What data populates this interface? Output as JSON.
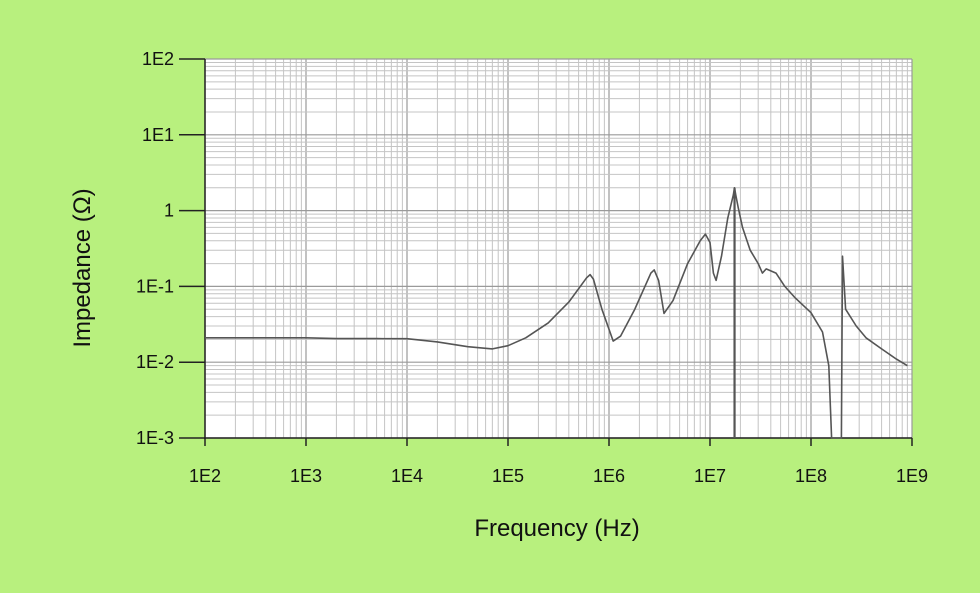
{
  "chart_data": {
    "type": "line",
    "xlabel": "Frequency (Hz)",
    "ylabel": "Impedance (Ω)",
    "x_scale": "log",
    "y_scale": "log",
    "xlim": [
      100,
      1000000000
    ],
    "ylim": [
      0.001,
      100
    ],
    "grid": true,
    "x_ticks": [
      {
        "value": 100,
        "label": "1E2"
      },
      {
        "value": 1000,
        "label": "1E3"
      },
      {
        "value": 10000,
        "label": "1E4"
      },
      {
        "value": 100000,
        "label": "1E5"
      },
      {
        "value": 1000000,
        "label": "1E6"
      },
      {
        "value": 10000000,
        "label": "1E7"
      },
      {
        "value": 100000000,
        "label": "1E8"
      },
      {
        "value": 1000000000,
        "label": "1E9"
      }
    ],
    "y_ticks": [
      {
        "value": 100,
        "label": "1E2"
      },
      {
        "value": 10,
        "label": "1E1"
      },
      {
        "value": 1,
        "label": "1"
      },
      {
        "value": 0.1,
        "label": "1E-1"
      },
      {
        "value": 0.01,
        "label": "1E-2"
      },
      {
        "value": 0.001,
        "label": "1E-3"
      }
    ],
    "series": [
      {
        "color": "#555555",
        "points": [
          [
            100,
            0.021
          ],
          [
            1000,
            0.021
          ],
          [
            2000,
            0.0205
          ],
          [
            5000,
            0.0205
          ],
          [
            10000,
            0.0204
          ],
          [
            20000,
            0.0185
          ],
          [
            40000,
            0.016
          ],
          [
            70000,
            0.015
          ],
          [
            100000,
            0.0165
          ],
          [
            150000,
            0.021
          ],
          [
            250000,
            0.033
          ],
          [
            400000,
            0.062
          ],
          [
            600000,
            0.13
          ],
          [
            650000,
            0.143
          ],
          [
            700000,
            0.125
          ],
          [
            850000,
            0.05
          ],
          [
            1100000,
            0.019
          ],
          [
            1300000,
            0.022
          ],
          [
            1800000,
            0.05
          ],
          [
            2600000,
            0.15
          ],
          [
            2800000,
            0.165
          ],
          [
            3100000,
            0.12
          ],
          [
            3500000,
            0.044
          ],
          [
            4300000,
            0.065
          ],
          [
            6000000,
            0.2
          ],
          [
            8000000,
            0.4
          ],
          [
            9000000,
            0.49
          ],
          [
            10000000,
            0.38
          ],
          [
            10800000,
            0.15
          ],
          [
            11500000,
            0.12
          ],
          [
            13000000,
            0.25
          ],
          [
            15000000,
            0.8
          ],
          [
            17000000,
            1.6
          ],
          [
            17500000,
            2.0
          ],
          [
            18000000,
            1.6
          ],
          [
            19000000,
            1.1
          ],
          [
            21000000,
            0.6
          ],
          [
            25000000,
            0.3
          ],
          [
            30000000,
            0.2
          ],
          [
            33000000,
            0.15
          ],
          [
            36000000,
            0.17
          ],
          [
            45000000,
            0.15
          ],
          [
            55000000,
            0.1
          ],
          [
            70000000,
            0.07
          ],
          [
            100000000,
            0.045
          ],
          [
            130000000,
            0.025
          ],
          [
            150000000,
            0.009
          ],
          [
            160000000,
            0.001
          ],
          [
            200000000,
            0.001
          ],
          [
            205000000,
            0.25
          ],
          [
            220000000,
            0.05
          ],
          [
            280000000,
            0.03
          ],
          [
            350000000,
            0.021
          ],
          [
            500000000,
            0.015
          ],
          [
            700000000,
            0.011
          ],
          [
            900000000,
            0.009
          ]
        ],
        "extra_segments": [
          [
            [
              17500000,
              0.001
            ],
            [
              17500000,
              2.0
            ]
          ]
        ]
      }
    ]
  }
}
